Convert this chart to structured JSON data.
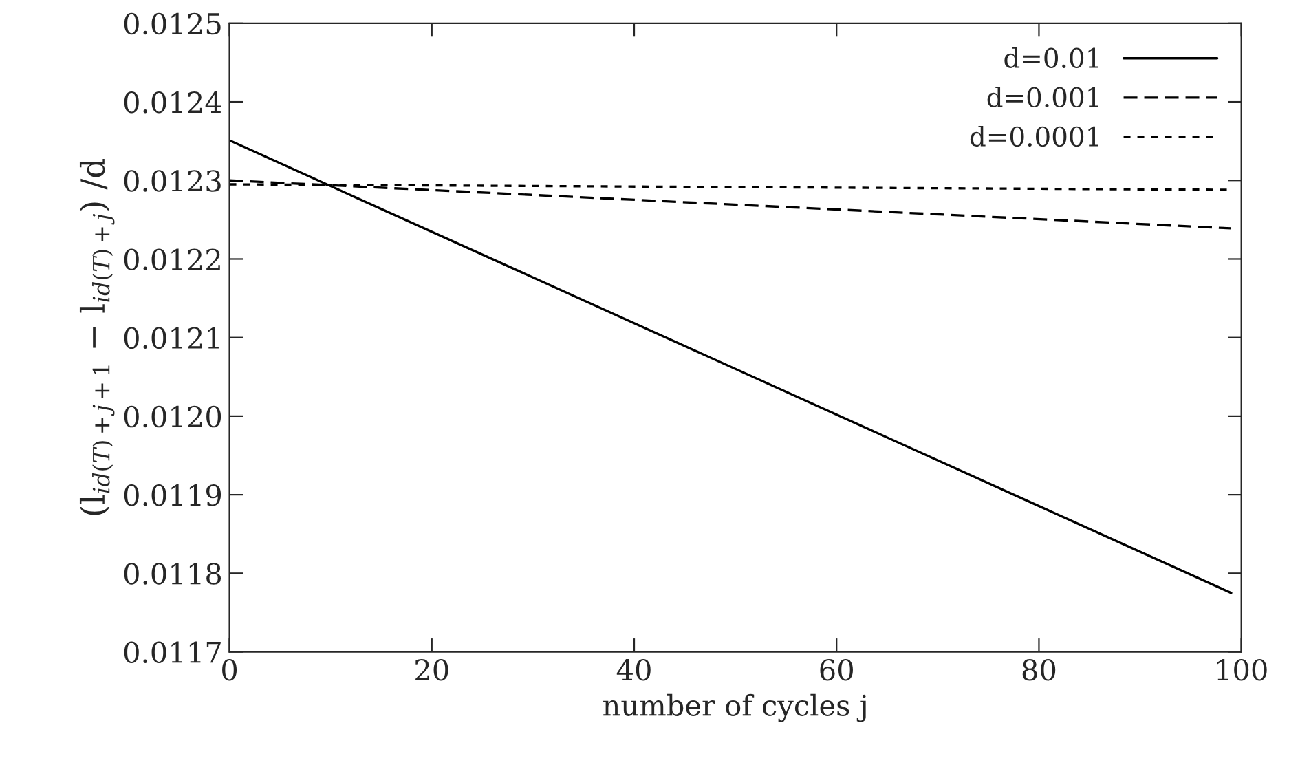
{
  "chart_data": {
    "type": "line",
    "xlabel": "number of cycles j",
    "ylabel": "(l$_{id(T)+j+1}$ − l$_{id(T)+j}$) /d",
    "x": [
      0,
      99
    ],
    "series": [
      {
        "name": "d=0.01",
        "color": "#000000",
        "line_style": "solid",
        "values": [
          0.012351,
          0.011775
        ]
      },
      {
        "name": "d=0.001",
        "color": "#000000",
        "line_style": "dashed",
        "values": [
          0.0123,
          0.012239
        ]
      },
      {
        "name": "d=0.0001",
        "color": "#000000",
        "line_style": "dotted",
        "values": [
          0.012295,
          0.012288
        ]
      }
    ],
    "xlim": [
      0,
      100
    ],
    "xticks": [
      0,
      20,
      40,
      60,
      80,
      100
    ],
    "ylim": [
      0.0117,
      0.0125
    ],
    "yticks": [
      0.0117,
      0.0118,
      0.0119,
      {
        "value": 0.012,
        "label": "0.0120"
      },
      0.0121,
      0.0122,
      0.0123,
      0.0124,
      0.0125
    ],
    "grid": false,
    "legend": "top right",
    "marker": "none"
  }
}
